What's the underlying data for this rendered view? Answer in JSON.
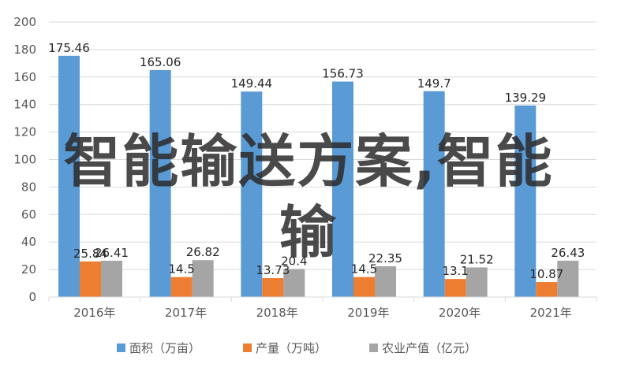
{
  "chart_data": {
    "type": "bar",
    "categories": [
      "2016年",
      "2017年",
      "2018年",
      "2019年",
      "2020年",
      "2021年"
    ],
    "series": [
      {
        "name": "面积（万亩）",
        "values": [
          175.46,
          165.06,
          149.44,
          156.73,
          149.7,
          139.29
        ],
        "color": "#5b9bd5"
      },
      {
        "name": "产量（万吨）",
        "values": [
          25.84,
          14.5,
          13.73,
          14.5,
          13.1,
          10.87
        ],
        "color": "#ed7d31"
      },
      {
        "name": "农业产值（亿元）",
        "values": [
          26.41,
          26.82,
          20.4,
          22.35,
          21.52,
          26.43
        ],
        "color": "#a5a5a5"
      }
    ],
    "data_labels": [
      [
        "175.46",
        "165.06",
        "149.44",
        "156.73",
        "149.7",
        "139.29"
      ],
      [
        "25.84",
        "14.5",
        "13.73",
        "14.5",
        "13.1",
        "10.87"
      ],
      [
        "26.41",
        "26.82",
        "20.4",
        "22.35",
        "21.52",
        "26.43"
      ]
    ],
    "ylim": [
      0,
      200
    ],
    "yticks": [
      0,
      20,
      40,
      60,
      80,
      100,
      120,
      140,
      160,
      180,
      200
    ],
    "grid": true,
    "legend_position": "bottom",
    "title": "",
    "xlabel": "",
    "ylabel": ""
  },
  "watermark": {
    "line1": "智能输送方案,智能",
    "line2": "输"
  }
}
